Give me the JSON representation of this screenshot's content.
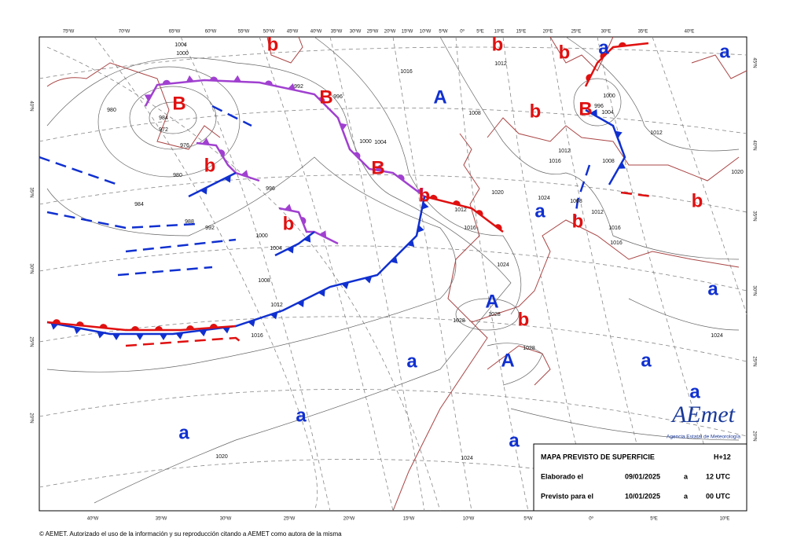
{
  "map": {
    "top_longitudes": [
      "75ºW",
      "70ºW",
      "65ºW",
      "60ºW",
      "55ºW",
      "50ºW",
      "45ºW",
      "40ºW",
      "35ºW",
      "30ºW",
      "25ºW",
      "20ºW",
      "15ºW",
      "10ºW",
      "5ºW",
      "0º",
      "5ºE",
      "10ºE",
      "15ºE",
      "20ºE",
      "25ºE",
      "30ºE",
      "35ºE",
      "40ºE"
    ],
    "bottom_longitudes": [
      "40ºW",
      "35ºW",
      "30ºW",
      "25ºW",
      "20ºW",
      "15ºW",
      "10ºW",
      "5ºW",
      "0º",
      "5ºE",
      "10ºE"
    ],
    "left_latitudes": [
      "40ºN",
      "35ºN",
      "30ºN",
      "25ºN",
      "20ºN"
    ],
    "right_latitudes": [
      "45ºN",
      "40ºN",
      "35ºN",
      "30ºN",
      "25ºN",
      "20ºN"
    ],
    "pressure_centers": [
      "B",
      "B",
      "B",
      "B",
      "b",
      "b",
      "b",
      "b",
      "b",
      "b",
      "b",
      "b",
      "b",
      "b",
      "A",
      "A",
      "A",
      "a",
      "a",
      "a",
      "a",
      "a",
      "a",
      "a",
      "a",
      "a",
      "a"
    ],
    "isobar_labels": [
      "1004",
      "1000",
      "992",
      "996",
      "980",
      "984",
      "972",
      "976",
      "980",
      "984",
      "988",
      "992",
      "996",
      "1000",
      "1004",
      "1008",
      "1012",
      "1016",
      "1020",
      "1024",
      "1028",
      "1028",
      "1028",
      "1024",
      "1016",
      "1012",
      "1008",
      "1000",
      "1004",
      "1012",
      "1016",
      "1020",
      "1012",
      "1016",
      "1024",
      "1008",
      "1012",
      "1016",
      "1016",
      "1000",
      "1004",
      "1008",
      "1012",
      "1020",
      "1024",
      "996"
    ]
  },
  "info_box": {
    "title": "MAPA PREVISTO DE SUPERFICIE",
    "run": "H+12",
    "rows": [
      [
        "Elaborado el",
        "09/01/2025",
        "a",
        "12 UTC"
      ],
      [
        "Previsto para el",
        "10/01/2025",
        "a",
        "00 UTC"
      ]
    ]
  },
  "logo": {
    "name": "AEmet",
    "subtitle": "Agencia Estatal de Meteorología"
  },
  "footer": "© AEMET. Autorizado el uso de la información y su reproducción citando a AEMET como autora de la misma"
}
